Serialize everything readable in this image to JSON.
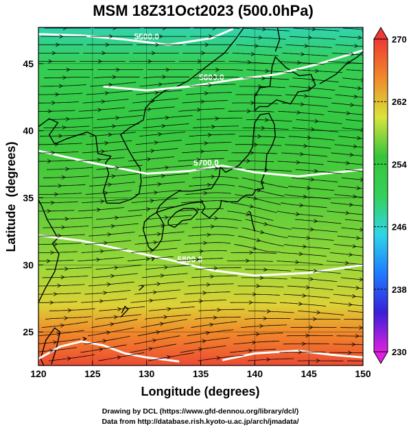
{
  "chart_data": {
    "type": "heatmap",
    "title": "MSM 18Z31Oct2023 (500.0hPa)",
    "xlabel": "Longitude (degrees)",
    "ylabel": "Latitude  (degrees)",
    "xlim": [
      120,
      150
    ],
    "ylim": [
      22.5,
      47.7
    ],
    "x_ticks": [
      120,
      125,
      130,
      135,
      140,
      145,
      150
    ],
    "y_ticks": [
      25,
      30,
      35,
      40,
      45
    ],
    "colorbar": {
      "range": [
        230,
        270
      ],
      "ticks": [
        230,
        238,
        246,
        254,
        262,
        270
      ]
    },
    "temperature_field_K": [
      {
        "lat": 47.7,
        "value": 247
      },
      {
        "lat": 45,
        "value": 251
      },
      {
        "lat": 40,
        "value": 254
      },
      {
        "lat": 35,
        "value": 256
      },
      {
        "lat": 30,
        "value": 258
      },
      {
        "lat": 27,
        "value": 261
      },
      {
        "lat": 25,
        "value": 265
      },
      {
        "lat": 22.5,
        "value": 269
      }
    ],
    "contours": [
      {
        "label": "5500.0",
        "points": [
          [
            120,
            47.2
          ],
          [
            124,
            47.1
          ],
          [
            128,
            46.8
          ],
          [
            132,
            46.4
          ],
          [
            136,
            46.9
          ],
          [
            138,
            47.6
          ]
        ]
      },
      {
        "label": "5600.0",
        "points": [
          [
            126,
            43.3
          ],
          [
            130,
            43.0
          ],
          [
            134,
            43.3
          ],
          [
            138,
            43.8
          ],
          [
            142,
            44.2
          ],
          [
            146,
            45.0
          ],
          [
            150,
            46.0
          ]
        ]
      },
      {
        "label": "5700.0",
        "points": [
          [
            120,
            38.5
          ],
          [
            125,
            37.6
          ],
          [
            130,
            36.8
          ],
          [
            134,
            37.0
          ],
          [
            137,
            37.4
          ],
          [
            140,
            36.9
          ],
          [
            144,
            36.6
          ],
          [
            150,
            37.1
          ]
        ]
      },
      {
        "label": "5800.0",
        "points": [
          [
            120,
            32.2
          ],
          [
            124,
            31.8
          ],
          [
            128,
            31.1
          ],
          [
            132,
            30.4
          ],
          [
            136,
            29.6
          ],
          [
            140,
            29.2
          ],
          [
            145,
            29.4
          ],
          [
            150,
            30.0
          ]
        ]
      },
      {
        "label": "",
        "points": [
          [
            120,
            23.0
          ],
          [
            122,
            23.9
          ],
          [
            124,
            24.3
          ],
          [
            126,
            24.0
          ],
          [
            128,
            23.4
          ],
          [
            130,
            23.1
          ],
          [
            133,
            22.8
          ]
        ]
      },
      {
        "label": "",
        "points": [
          [
            137,
            22.9
          ],
          [
            140,
            23.4
          ],
          [
            144,
            23.6
          ],
          [
            147,
            23.3
          ],
          [
            150,
            23.1
          ]
        ]
      }
    ],
    "annotations": [
      "Drawing by DCL (https://www.gfd-dennou.org/library/dcl/)",
      "Data from http://database.rish.kyoto-u.ac.jp/arch/jmadata/"
    ]
  },
  "colors": {
    "scale": [
      "#e020e0",
      "#3a1fd8",
      "#1e7aff",
      "#2fd6e6",
      "#35d05a",
      "#35c53a",
      "#d8e43a",
      "#f08a2a",
      "#ee3a35"
    ],
    "contour": "#ffffff",
    "coast": "#000000"
  }
}
